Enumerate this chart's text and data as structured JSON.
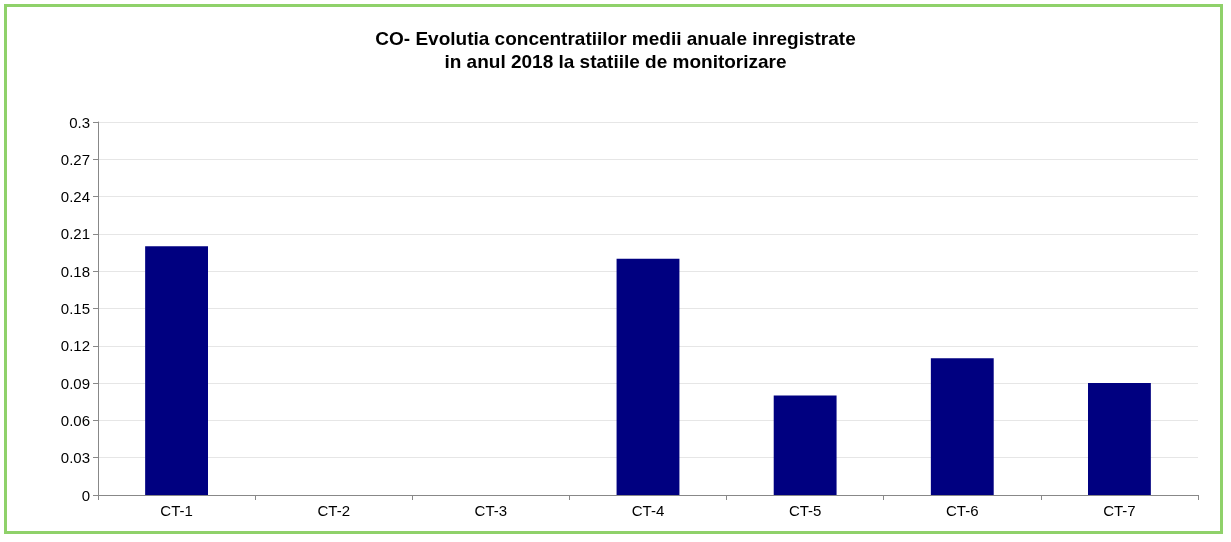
{
  "chart_data": {
    "type": "bar",
    "title": "CO- Evolutia concentratiilor medii anuale inregistrate\nin anul 2018 la statiile de monitorizare",
    "categories": [
      "CT-1",
      "CT-2",
      "CT-3",
      "CT-4",
      "CT-5",
      "CT-6",
      "CT-7"
    ],
    "values": [
      0.2,
      null,
      null,
      0.19,
      0.08,
      0.11,
      0.09
    ],
    "color": "#000080",
    "ylim": [
      0,
      0.3
    ],
    "yticks": [
      0,
      0.03,
      0.06,
      0.09,
      0.12,
      0.15,
      0.18,
      0.21,
      0.24,
      0.27,
      0.3
    ],
    "grid": "y"
  }
}
